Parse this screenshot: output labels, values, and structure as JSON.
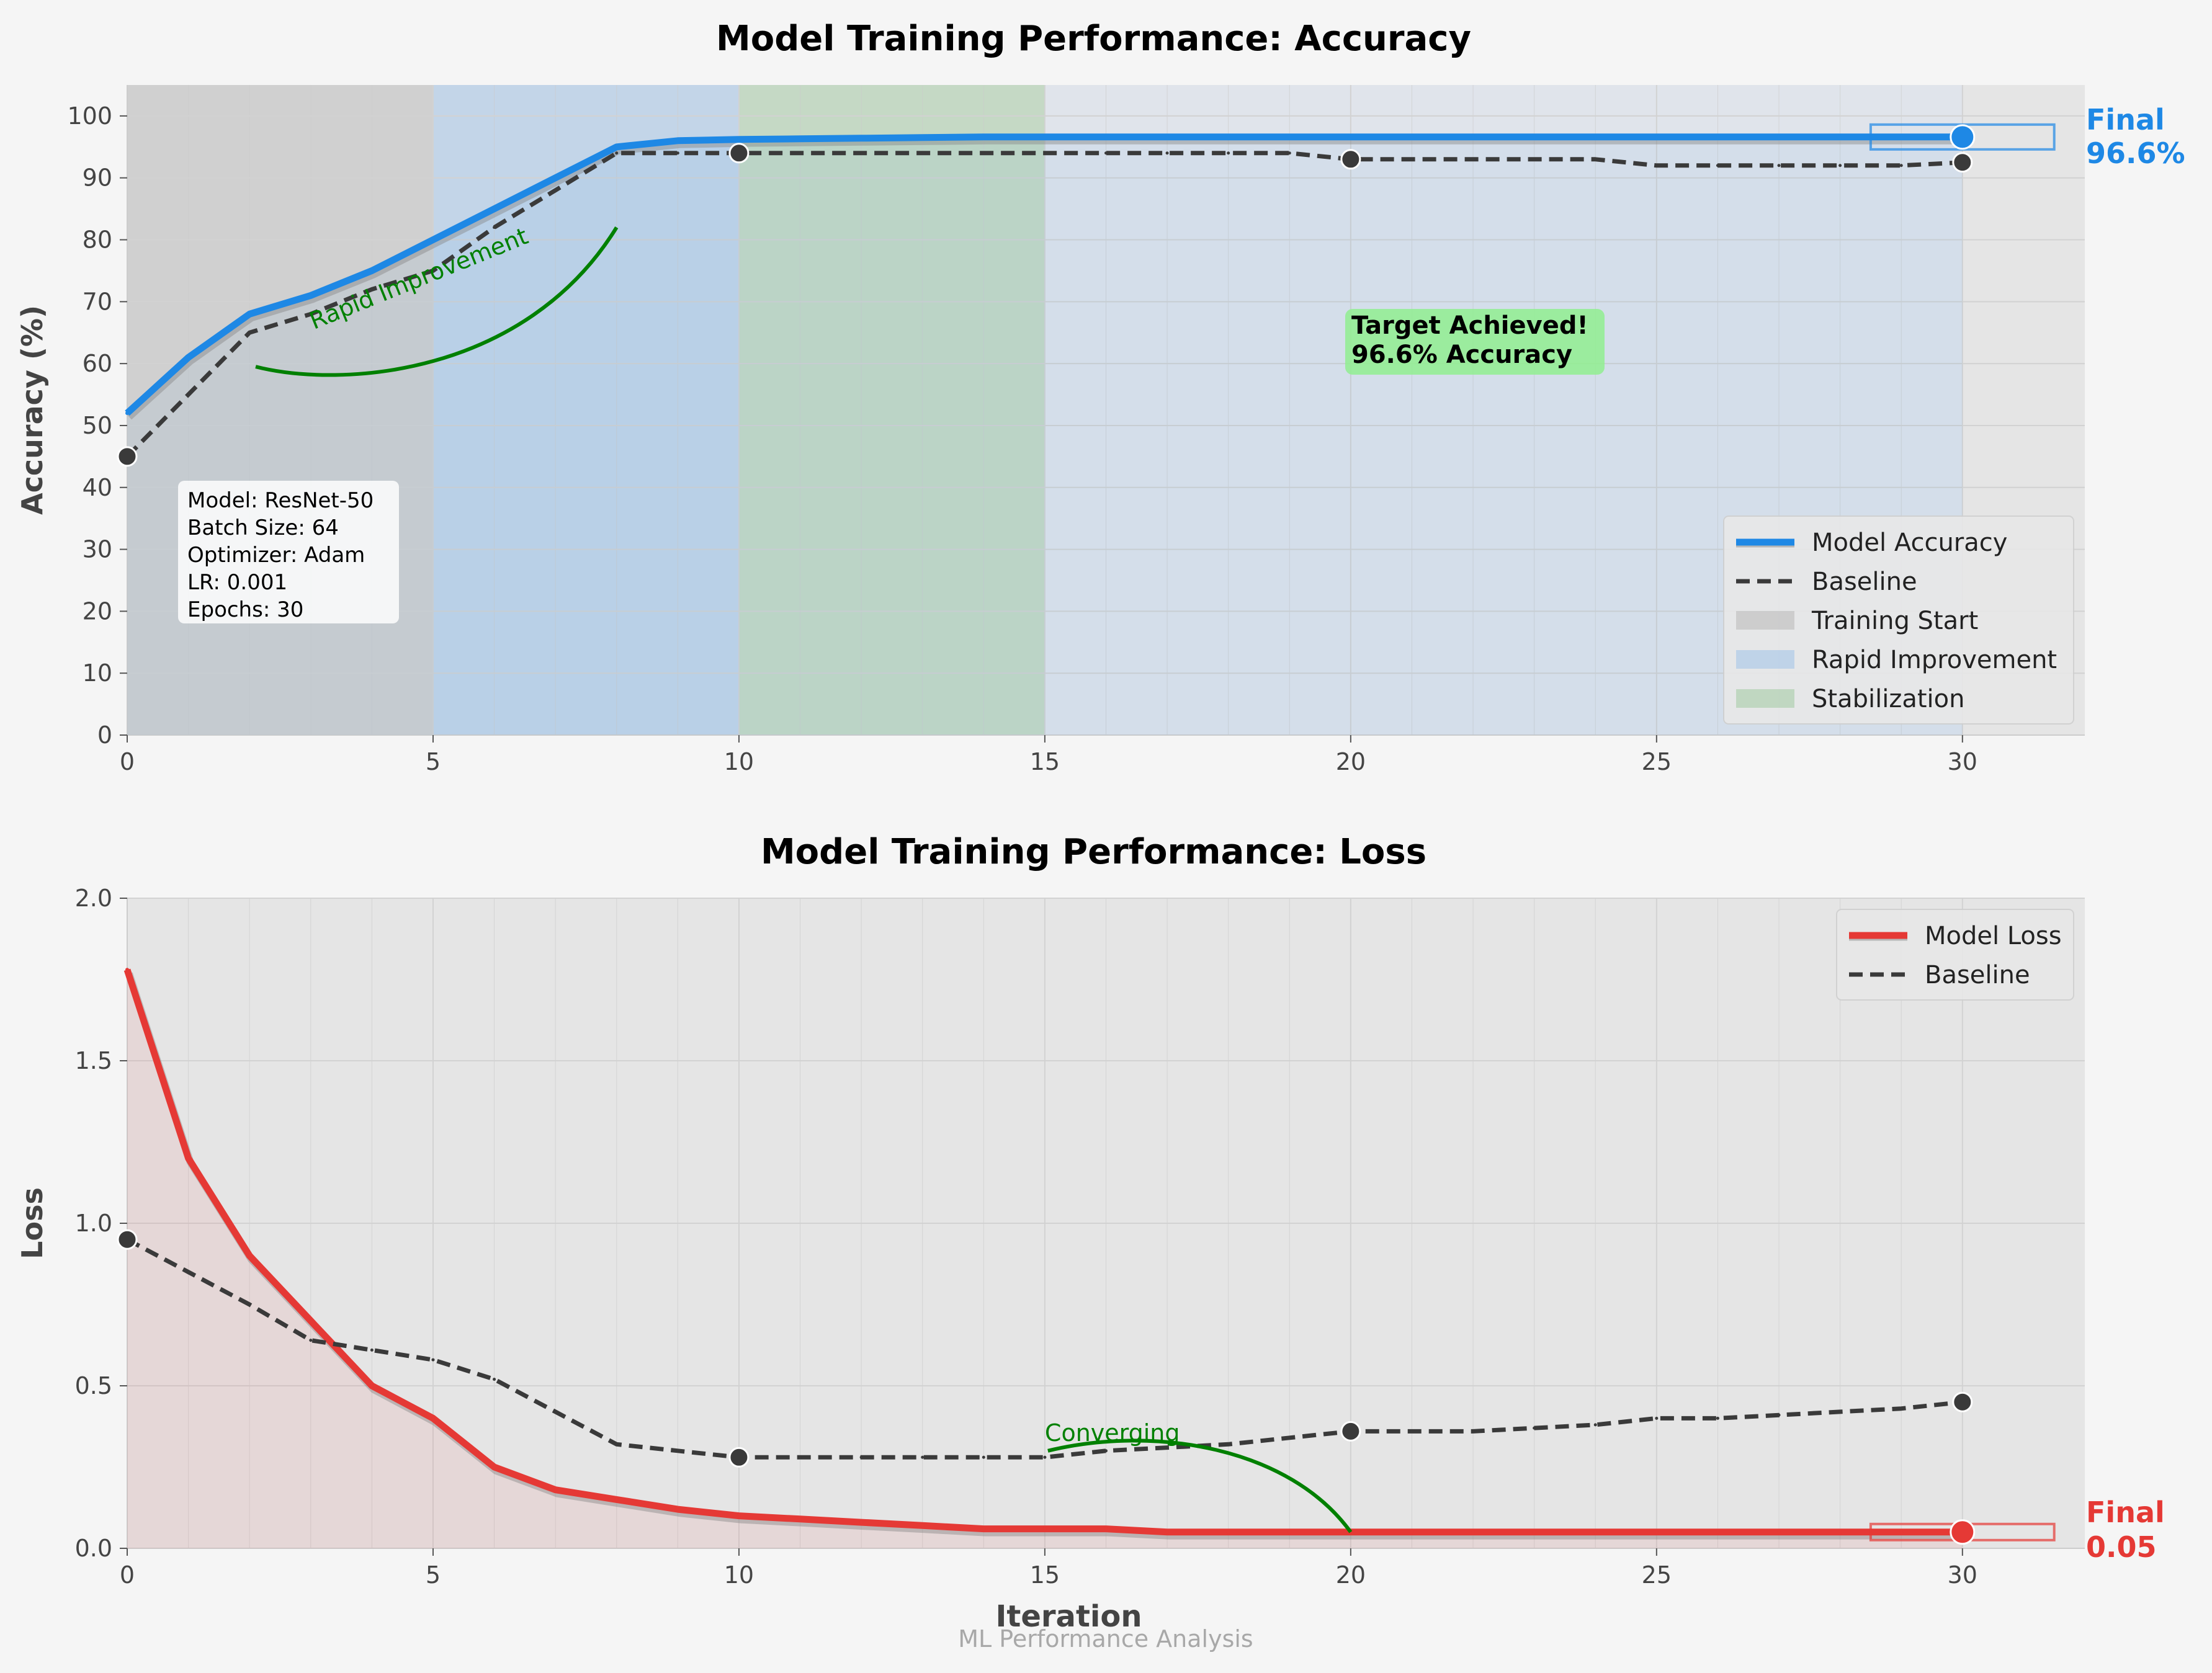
{
  "footer": "ML Performance Analysis",
  "colors": {
    "accuracy": "#1e88e5",
    "loss": "#e53935",
    "baseline": "#3a3a3a",
    "annotation": "#008000",
    "panel_bg": "#e5e5e5",
    "grid": "#d2d2d2",
    "target_box": "#90ee90"
  },
  "chart_data": [
    {
      "type": "line",
      "title": "Model Training Performance: Accuracy",
      "xlabel": "",
      "ylabel": "Accuracy (%)",
      "xlim": [
        0,
        32
      ],
      "ylim": [
        0,
        105
      ],
      "xticks": [
        "0",
        "5",
        "10",
        "15",
        "20",
        "25",
        "30"
      ],
      "yticks": [
        "0",
        "10",
        "20",
        "30",
        "40",
        "50",
        "60",
        "70",
        "80",
        "90",
        "100"
      ],
      "grid": true,
      "legend": "lower-right",
      "x": [
        0,
        1,
        2,
        3,
        4,
        5,
        6,
        7,
        8,
        9,
        10,
        11,
        12,
        13,
        14,
        15,
        16,
        17,
        18,
        19,
        20,
        21,
        22,
        23,
        24,
        25,
        26,
        27,
        28,
        29,
        30
      ],
      "series": [
        {
          "name": "Model Accuracy",
          "values": [
            52,
            61,
            68,
            71,
            75,
            80,
            85,
            90,
            95,
            96,
            96.2,
            96.3,
            96.4,
            96.5,
            96.6,
            96.6,
            96.6,
            96.6,
            96.6,
            96.6,
            96.6,
            96.6,
            96.6,
            96.6,
            96.6,
            96.6,
            96.6,
            96.6,
            96.6,
            96.6,
            96.6
          ]
        },
        {
          "name": "Baseline",
          "values": [
            45,
            55,
            65,
            68,
            72,
            75,
            82,
            88,
            94,
            94,
            94,
            94,
            94,
            94,
            94,
            94,
            94,
            94,
            94,
            94,
            93,
            93,
            93,
            93,
            93,
            92,
            92,
            92,
            92,
            92,
            92.5
          ],
          "markers_at": [
            0,
            10,
            20,
            30
          ]
        }
      ],
      "regions": [
        {
          "name": "Training Start",
          "from": 0,
          "to": 5,
          "color": "#c8c8c8"
        },
        {
          "name": "Rapid Improvement",
          "from": 5,
          "to": 10,
          "color": "#b7cfe8"
        },
        {
          "name": "Stabilization",
          "from": 10,
          "to": 15,
          "color": "#b9d4ba"
        }
      ],
      "annotations": {
        "curve_label": "Rapid Improvement",
        "target_text": [
          "Target Achieved!",
          "96.6% Accuracy"
        ],
        "final_label": [
          "Final",
          "96.6%"
        ],
        "info_box": [
          "Model: ResNet-50",
          "Batch Size: 64",
          "Optimizer: Adam",
          "LR: 0.001",
          "Epochs: 30"
        ]
      }
    },
    {
      "type": "line",
      "title": "Model Training Performance: Loss",
      "xlabel": "Iteration",
      "ylabel": "Loss",
      "xlim": [
        0,
        32
      ],
      "ylim": [
        0,
        2.0
      ],
      "xticks": [
        "0",
        "5",
        "10",
        "15",
        "20",
        "25",
        "30"
      ],
      "yticks": [
        "0.0",
        "0.5",
        "1.0",
        "1.5",
        "2.0"
      ],
      "grid": true,
      "legend": "top-right",
      "x": [
        0,
        1,
        2,
        3,
        4,
        5,
        6,
        7,
        8,
        9,
        10,
        11,
        12,
        13,
        14,
        15,
        16,
        17,
        18,
        19,
        20,
        21,
        22,
        23,
        24,
        25,
        26,
        27,
        28,
        29,
        30
      ],
      "series": [
        {
          "name": "Model Loss",
          "values": [
            1.78,
            1.2,
            0.9,
            0.7,
            0.5,
            0.4,
            0.25,
            0.18,
            0.15,
            0.12,
            0.1,
            0.09,
            0.08,
            0.07,
            0.06,
            0.06,
            0.06,
            0.05,
            0.05,
            0.05,
            0.05,
            0.05,
            0.05,
            0.05,
            0.05,
            0.05,
            0.05,
            0.05,
            0.05,
            0.05,
            0.05
          ]
        },
        {
          "name": "Baseline",
          "values": [
            0.95,
            0.85,
            0.75,
            0.64,
            0.61,
            0.58,
            0.52,
            0.42,
            0.32,
            0.3,
            0.28,
            0.28,
            0.28,
            0.28,
            0.28,
            0.28,
            0.3,
            0.31,
            0.32,
            0.34,
            0.36,
            0.36,
            0.36,
            0.37,
            0.38,
            0.4,
            0.4,
            0.41,
            0.42,
            0.43,
            0.45
          ],
          "markers_at": [
            0,
            10,
            20,
            30
          ]
        }
      ],
      "annotations": {
        "curve_label": "Converging",
        "final_label": [
          "Final",
          "0.05"
        ]
      }
    }
  ]
}
